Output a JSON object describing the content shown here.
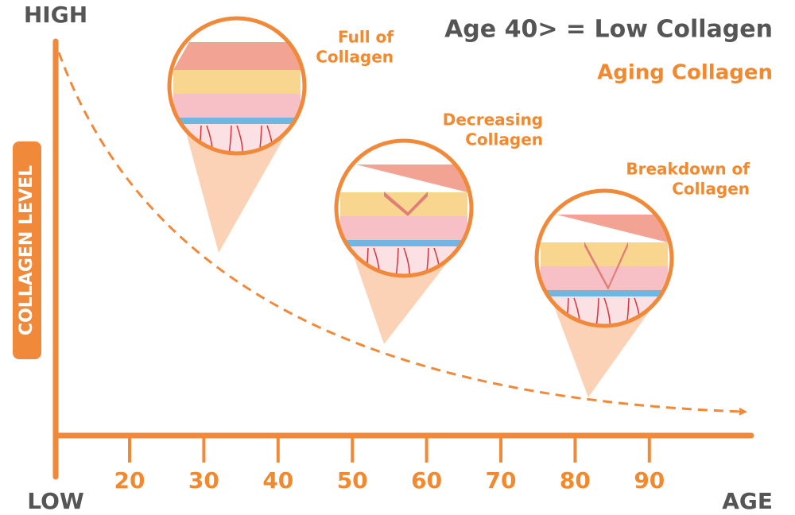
{
  "header": {
    "title": "Age 40> = Low Collagen",
    "subtitle": "Aging Collagen"
  },
  "axes": {
    "y_title": "COLLAGEN LEVEL",
    "y_high": "HIGH",
    "y_low": "LOW",
    "x_title": "AGE",
    "x_ticks": [
      20,
      30,
      40,
      50,
      60,
      70,
      80,
      90
    ]
  },
  "stages": [
    {
      "label_lines": [
        "Full of",
        "Collagen"
      ]
    },
    {
      "label_lines": [
        "Decreasing",
        "Collagen"
      ]
    },
    {
      "label_lines": [
        "Breakdown of",
        "Collagen"
      ]
    }
  ]
}
